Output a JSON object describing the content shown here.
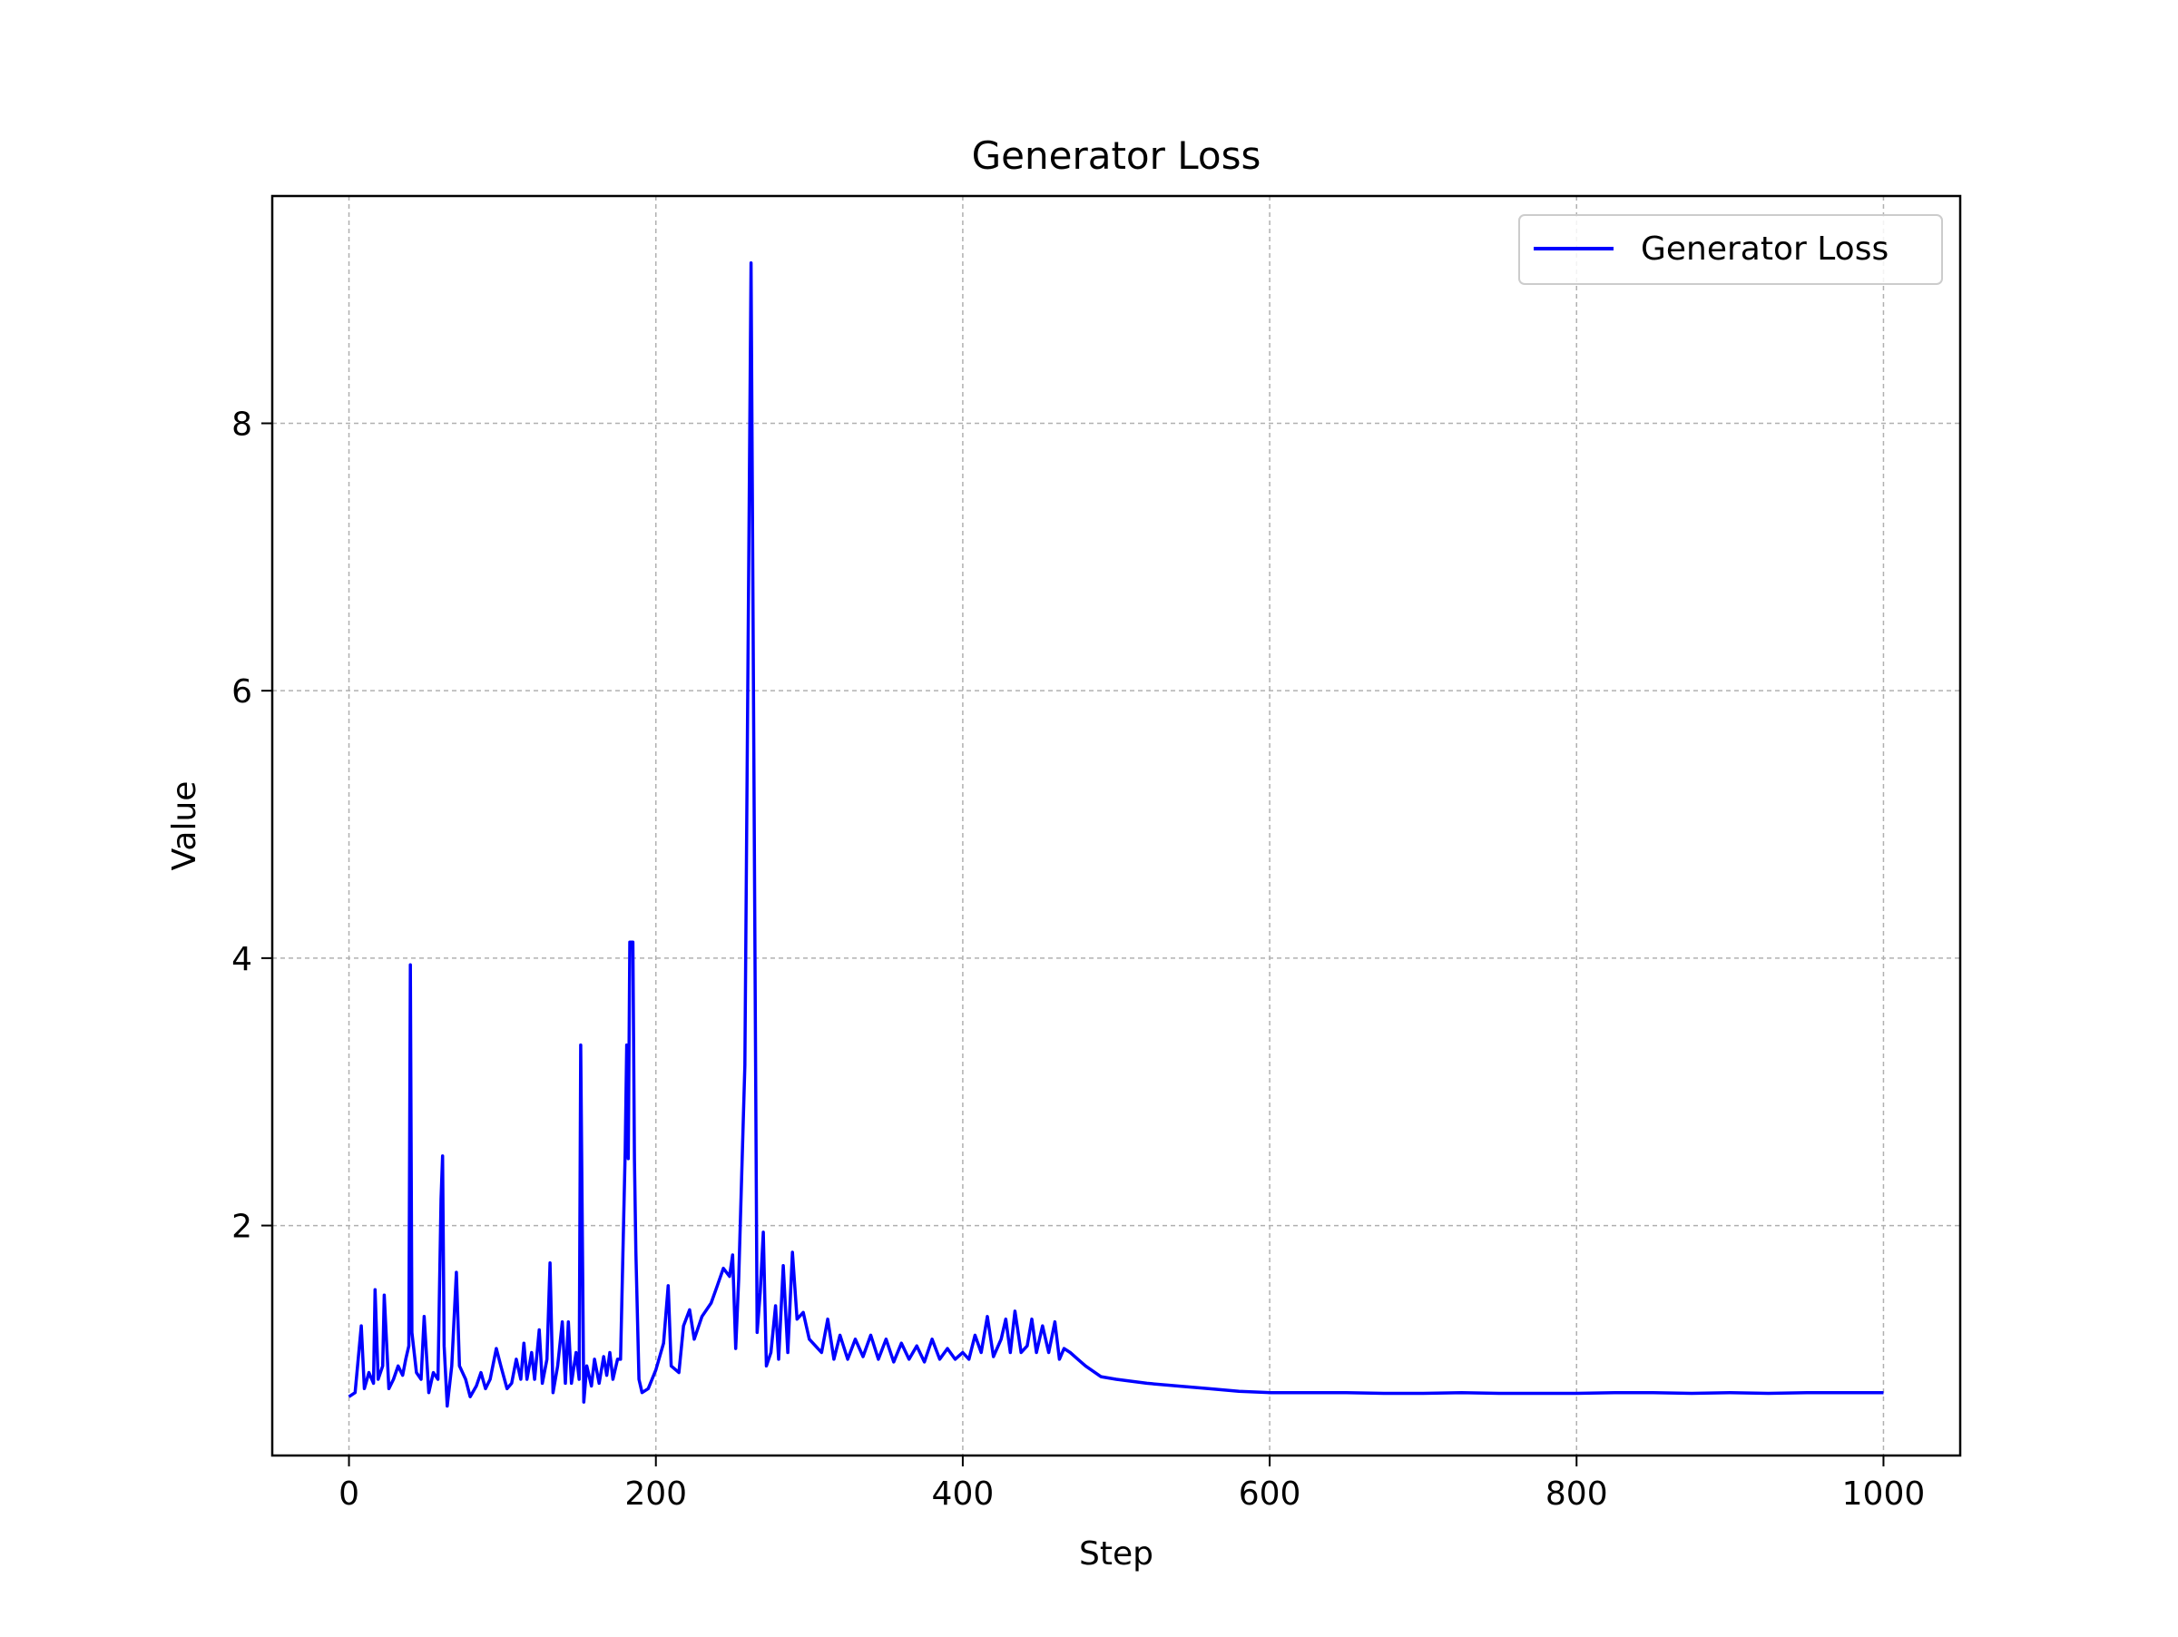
{
  "chart_data": {
    "type": "line",
    "title": "Generator Loss",
    "xlabel": "Step",
    "ylabel": "Value",
    "xlim": [
      -50,
      1050
    ],
    "ylim": [
      0.28,
      9.7
    ],
    "x_ticks": [
      0,
      200,
      400,
      600,
      800,
      1000
    ],
    "y_ticks": [
      2,
      4,
      6,
      8
    ],
    "grid": true,
    "legend_position": "top-right",
    "series": [
      {
        "name": "Generator Loss",
        "color": "#0000ff",
        "points": [
          [
            0,
            0.72
          ],
          [
            4,
            0.75
          ],
          [
            8,
            1.25
          ],
          [
            10,
            0.78
          ],
          [
            13,
            0.9
          ],
          [
            16,
            0.82
          ],
          [
            17,
            1.52
          ],
          [
            19,
            0.85
          ],
          [
            22,
            0.95
          ],
          [
            23,
            1.48
          ],
          [
            26,
            0.78
          ],
          [
            29,
            0.85
          ],
          [
            32,
            0.95
          ],
          [
            35,
            0.88
          ],
          [
            37,
            1.0
          ],
          [
            39,
            1.1
          ],
          [
            40,
            3.95
          ],
          [
            41,
            1.2
          ],
          [
            44,
            0.9
          ],
          [
            47,
            0.85
          ],
          [
            49,
            1.32
          ],
          [
            52,
            0.75
          ],
          [
            55,
            0.9
          ],
          [
            58,
            0.85
          ],
          [
            60,
            2.2
          ],
          [
            61,
            2.52
          ],
          [
            62,
            1.1
          ],
          [
            64,
            0.65
          ],
          [
            67,
            0.95
          ],
          [
            70,
            1.65
          ],
          [
            72,
            0.95
          ],
          [
            76,
            0.85
          ],
          [
            79,
            0.72
          ],
          [
            83,
            0.8
          ],
          [
            86,
            0.9
          ],
          [
            89,
            0.78
          ],
          [
            92,
            0.85
          ],
          [
            96,
            1.08
          ],
          [
            99,
            0.95
          ],
          [
            103,
            0.78
          ],
          [
            106,
            0.82
          ],
          [
            109,
            1.0
          ],
          [
            112,
            0.85
          ],
          [
            114,
            1.12
          ],
          [
            116,
            0.85
          ],
          [
            119,
            1.05
          ],
          [
            121,
            0.85
          ],
          [
            124,
            1.22
          ],
          [
            126,
            0.82
          ],
          [
            129,
            1.0
          ],
          [
            131,
            1.72
          ],
          [
            133,
            0.75
          ],
          [
            136,
            0.95
          ],
          [
            139,
            1.28
          ],
          [
            141,
            0.82
          ],
          [
            143,
            1.28
          ],
          [
            145,
            0.82
          ],
          [
            148,
            1.05
          ],
          [
            150,
            0.85
          ],
          [
            151,
            3.35
          ],
          [
            153,
            0.68
          ],
          [
            155,
            0.95
          ],
          [
            158,
            0.8
          ],
          [
            160,
            1.0
          ],
          [
            163,
            0.82
          ],
          [
            166,
            1.02
          ],
          [
            168,
            0.88
          ],
          [
            170,
            1.05
          ],
          [
            172,
            0.85
          ],
          [
            175,
            1.0
          ],
          [
            177,
            1.0
          ],
          [
            180,
            2.55
          ],
          [
            181,
            3.35
          ],
          [
            182,
            2.5
          ],
          [
            183,
            4.12
          ],
          [
            185,
            4.12
          ],
          [
            186,
            2.5
          ],
          [
            187,
            1.8
          ],
          [
            189,
            0.85
          ],
          [
            191,
            0.75
          ],
          [
            195,
            0.78
          ],
          [
            200,
            0.92
          ],
          [
            205,
            1.12
          ],
          [
            208,
            1.55
          ],
          [
            210,
            0.95
          ],
          [
            215,
            0.9
          ],
          [
            218,
            1.25
          ],
          [
            222,
            1.37
          ],
          [
            225,
            1.15
          ],
          [
            230,
            1.32
          ],
          [
            236,
            1.42
          ],
          [
            240,
            1.55
          ],
          [
            244,
            1.68
          ],
          [
            248,
            1.62
          ],
          [
            250,
            1.78
          ],
          [
            252,
            1.08
          ],
          [
            254,
            1.6
          ],
          [
            258,
            3.2
          ],
          [
            262,
            9.2
          ],
          [
            266,
            1.2
          ],
          [
            268,
            1.5
          ],
          [
            270,
            1.95
          ],
          [
            272,
            0.95
          ],
          [
            275,
            1.05
          ],
          [
            278,
            1.4
          ],
          [
            280,
            1.0
          ],
          [
            283,
            1.7
          ],
          [
            286,
            1.05
          ],
          [
            289,
            1.8
          ],
          [
            292,
            1.3
          ],
          [
            296,
            1.35
          ],
          [
            300,
            1.15
          ],
          [
            304,
            1.1
          ],
          [
            308,
            1.05
          ],
          [
            312,
            1.3
          ],
          [
            316,
            1.0
          ],
          [
            320,
            1.18
          ],
          [
            325,
            1.0
          ],
          [
            330,
            1.15
          ],
          [
            335,
            1.02
          ],
          [
            340,
            1.18
          ],
          [
            345,
            1.0
          ],
          [
            350,
            1.15
          ],
          [
            355,
            0.98
          ],
          [
            360,
            1.12
          ],
          [
            365,
            1.0
          ],
          [
            370,
            1.1
          ],
          [
            375,
            0.98
          ],
          [
            380,
            1.15
          ],
          [
            385,
            1.0
          ],
          [
            390,
            1.08
          ],
          [
            395,
            1.0
          ],
          [
            400,
            1.05
          ],
          [
            404,
            1.0
          ],
          [
            408,
            1.18
          ],
          [
            412,
            1.05
          ],
          [
            416,
            1.32
          ],
          [
            420,
            1.02
          ],
          [
            425,
            1.15
          ],
          [
            428,
            1.3
          ],
          [
            431,
            1.05
          ],
          [
            434,
            1.36
          ],
          [
            438,
            1.05
          ],
          [
            442,
            1.1
          ],
          [
            445,
            1.3
          ],
          [
            448,
            1.05
          ],
          [
            452,
            1.25
          ],
          [
            456,
            1.05
          ],
          [
            460,
            1.28
          ],
          [
            463,
            1.0
          ],
          [
            466,
            1.08
          ],
          [
            470,
            1.05
          ],
          [
            475,
            1.0
          ],
          [
            480,
            0.95
          ],
          [
            490,
            0.87
          ],
          [
            500,
            0.85
          ],
          [
            520,
            0.82
          ],
          [
            540,
            0.8
          ],
          [
            560,
            0.78
          ],
          [
            580,
            0.76
          ],
          [
            600,
            0.75
          ],
          [
            625,
            0.75
          ],
          [
            650,
            0.75
          ],
          [
            675,
            0.745
          ],
          [
            700,
            0.745
          ],
          [
            725,
            0.75
          ],
          [
            750,
            0.745
          ],
          [
            775,
            0.745
          ],
          [
            800,
            0.745
          ],
          [
            825,
            0.75
          ],
          [
            850,
            0.75
          ],
          [
            875,
            0.745
          ],
          [
            900,
            0.75
          ],
          [
            925,
            0.745
          ],
          [
            950,
            0.75
          ],
          [
            975,
            0.75
          ],
          [
            1000,
            0.75
          ]
        ]
      }
    ]
  }
}
